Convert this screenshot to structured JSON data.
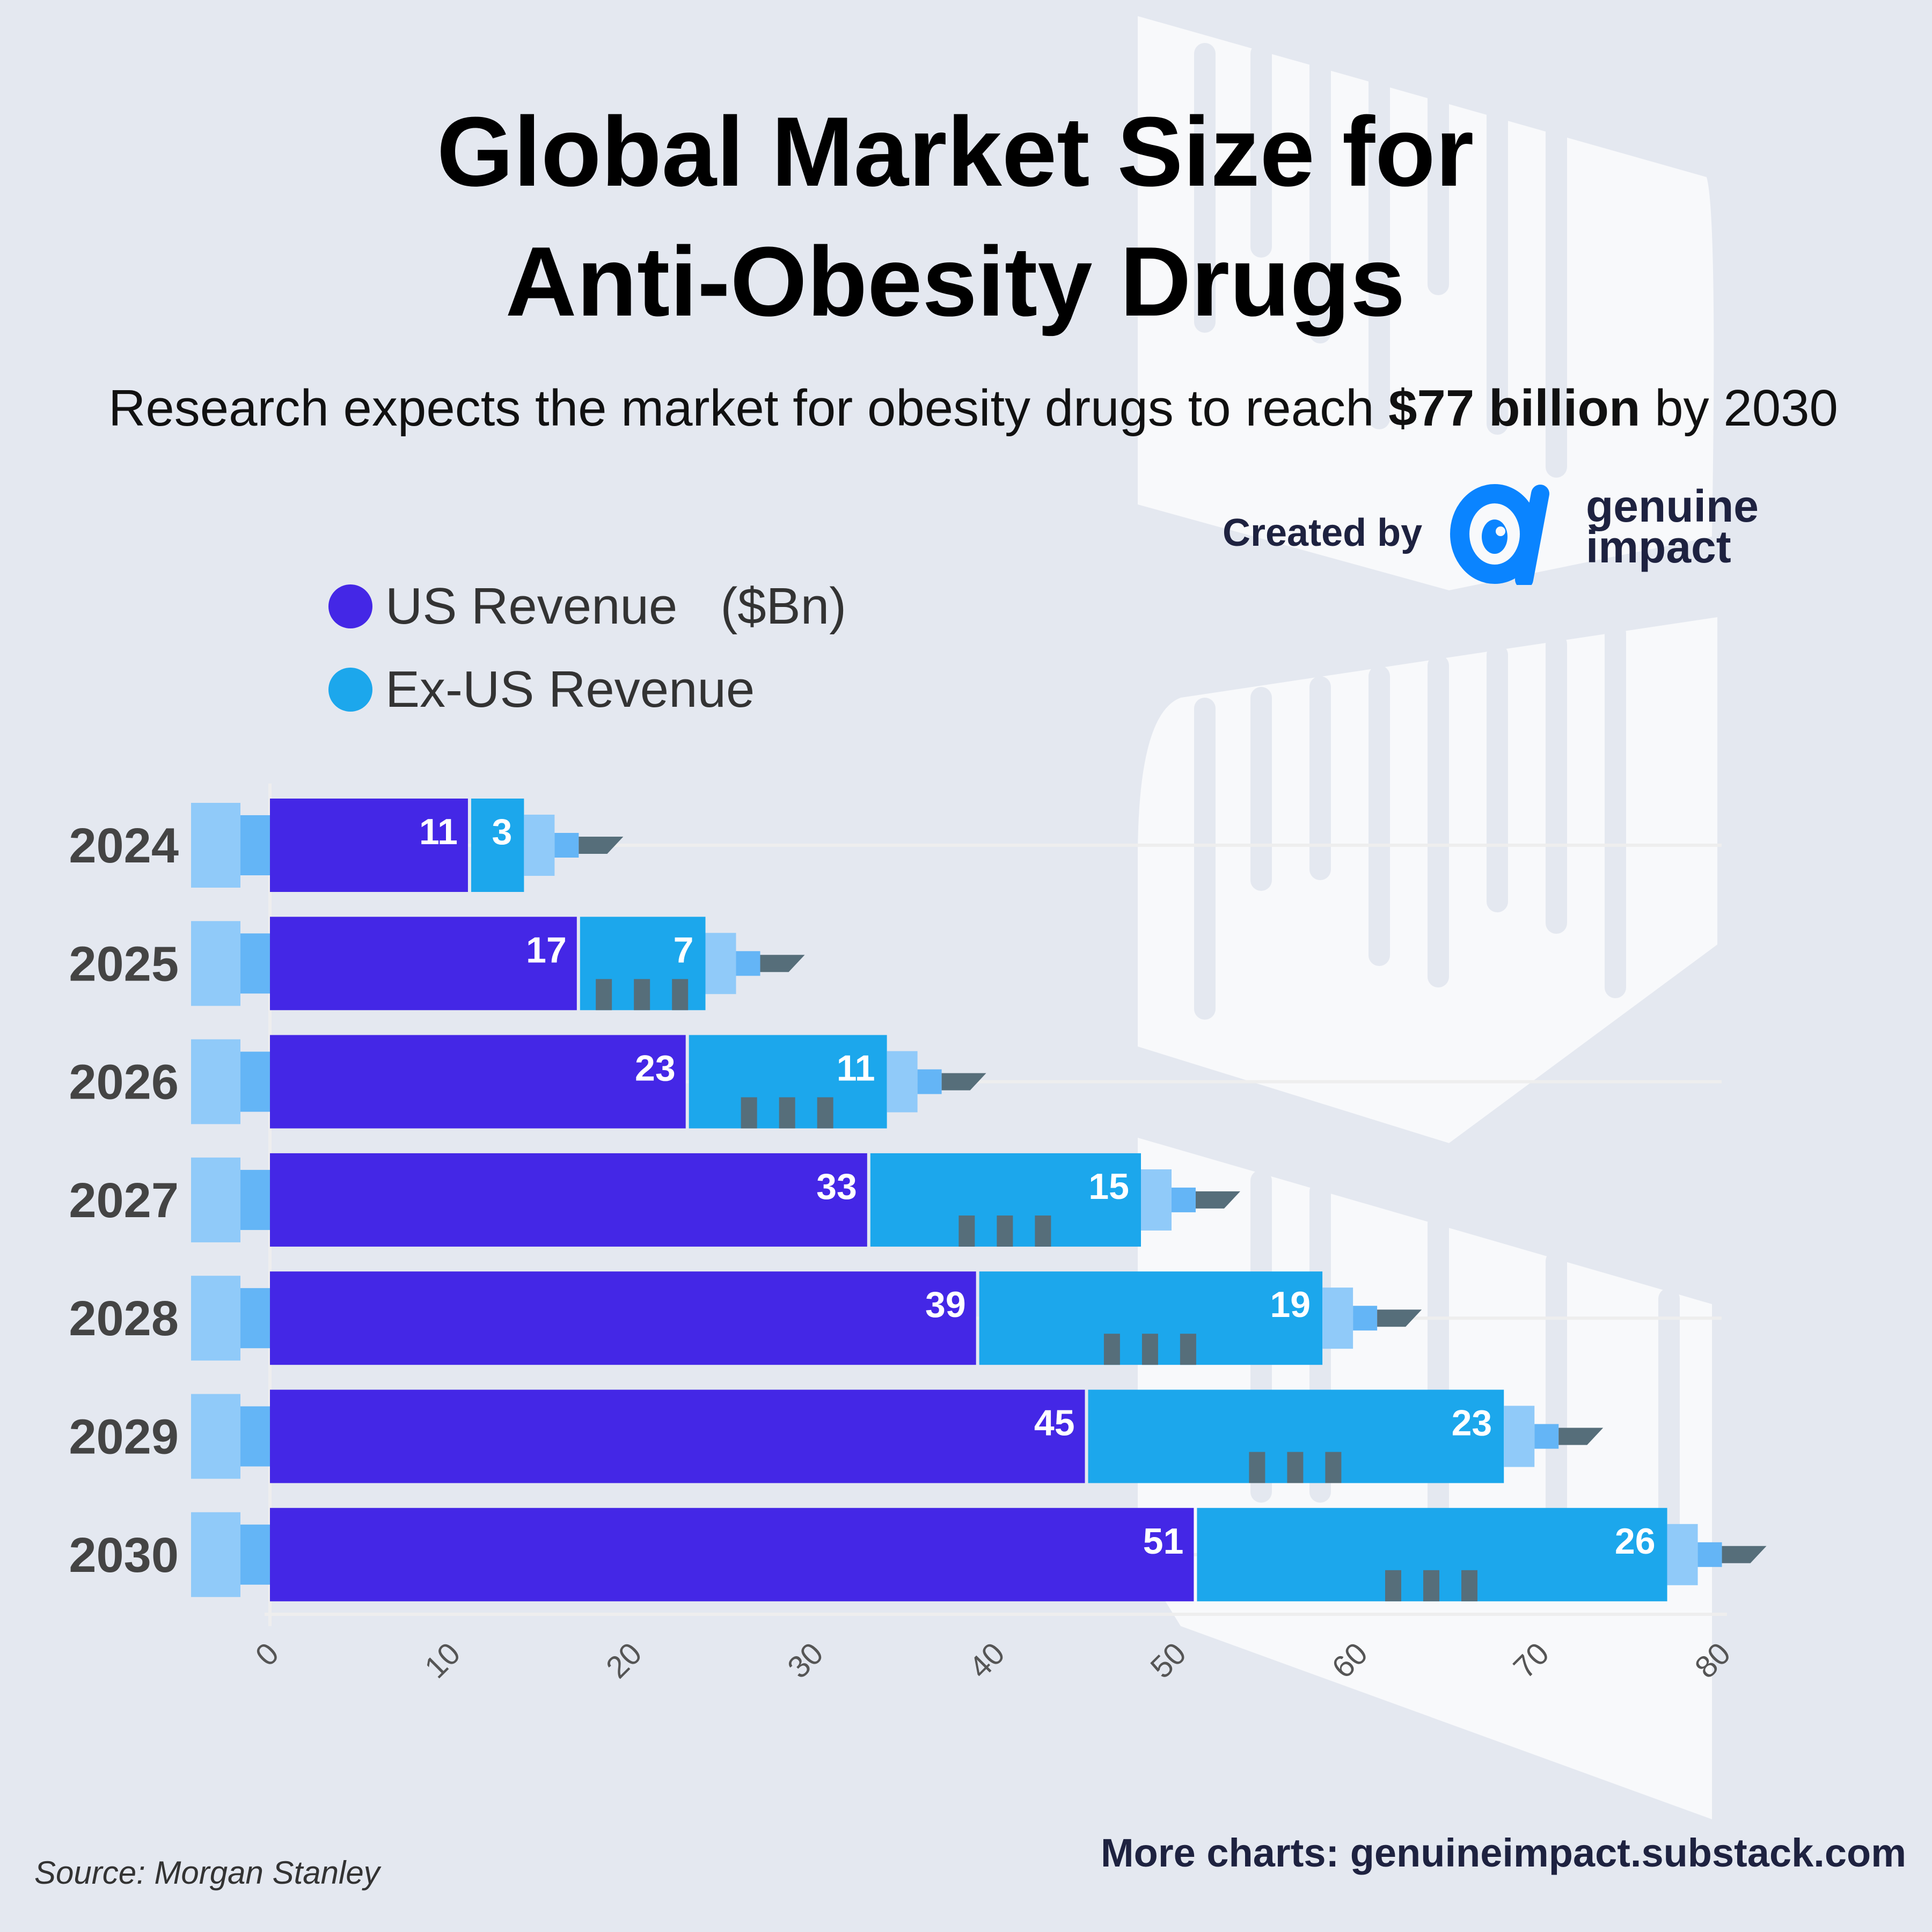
{
  "title_line1": "Global Market Size for",
  "title_line2": "Anti-Obesity Drugs",
  "subtitle_pre": "Research expects the market for obesity drugs to reach ",
  "subtitle_bold": "$77 billion",
  "subtitle_post": " by 2030",
  "created_by": "Created by",
  "brand": {
    "line1": "genuine",
    "line2": "impact",
    "logo": "alpha-eye-logo",
    "color": "#0a84ff"
  },
  "source": "Source: Morgan Stanley",
  "more_charts": "More charts: genuineimpact.substack.com",
  "chart_data": {
    "type": "bar",
    "orientation": "horizontal",
    "stacked": true,
    "categories": [
      "2024",
      "2025",
      "2026",
      "2027",
      "2028",
      "2029",
      "2030"
    ],
    "series": [
      {
        "name": "US Revenue",
        "color": "#4427e6",
        "values": [
          11,
          17,
          23,
          33,
          39,
          45,
          51
        ]
      },
      {
        "name": "Ex-US Revenue",
        "color": "#1ca7ec",
        "values": [
          3,
          7,
          11,
          15,
          19,
          23,
          26
        ]
      }
    ],
    "unit_label": "($Bn)",
    "xlim": [
      0,
      80
    ],
    "xticks": [
      "0",
      "10",
      "20",
      "30",
      "40",
      "50",
      "60",
      "70",
      "80"
    ],
    "grid": true,
    "legend": "top-left",
    "style": "syringe"
  }
}
